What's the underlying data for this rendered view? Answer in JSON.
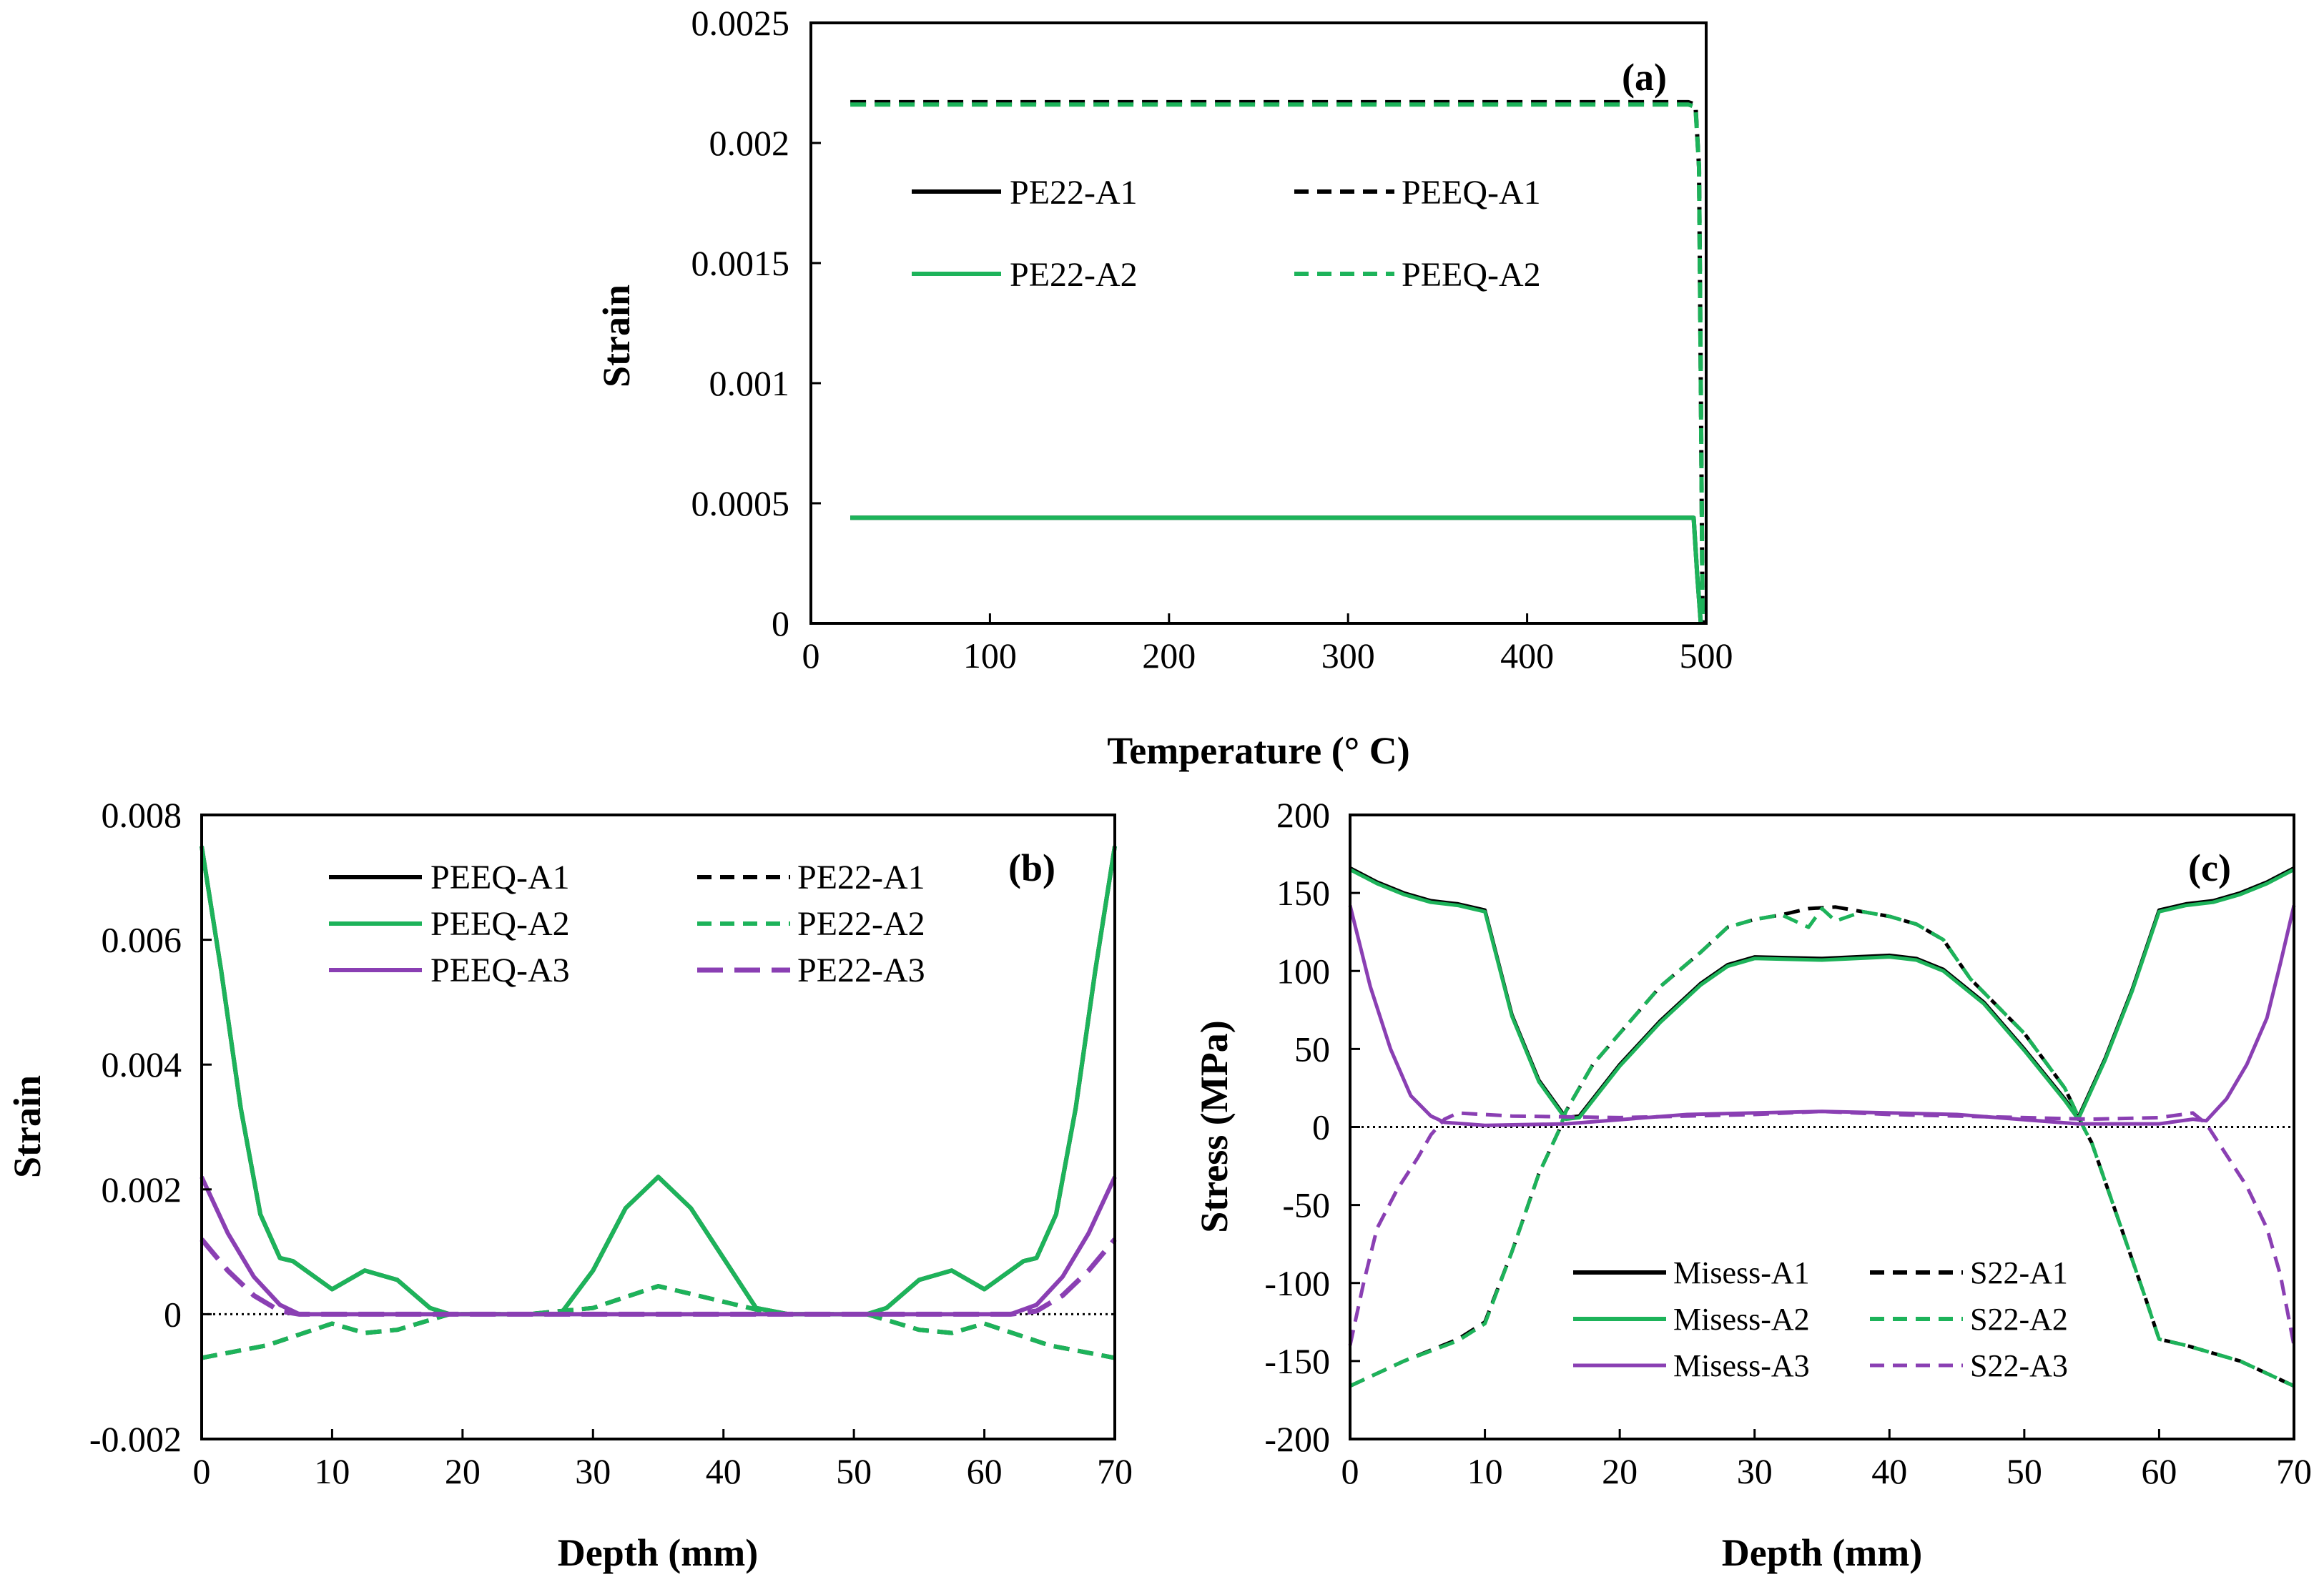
{
  "colors": {
    "A1": "#000000",
    "A2": "#1db35a",
    "A3": "#8a3fb3"
  },
  "chart_data": [
    {
      "id": "a",
      "type": "line",
      "panel_label": "(a)",
      "xlabel": "Temperature (° C)",
      "ylabel": "Strain",
      "xlim": [
        0,
        500
      ],
      "ylim": [
        0,
        0.0025
      ],
      "xticks": [
        "0",
        "100",
        "200",
        "300",
        "400",
        "500"
      ],
      "yticks": [
        "0",
        "0.0005",
        "0.001",
        "0.0015",
        "0.002",
        "0.0025"
      ],
      "legend_position": "upper-middle",
      "series": [
        {
          "name": "PE22-A1",
          "color_key": "A1",
          "dash": false,
          "x": [
            22,
            100,
            200,
            300,
            400,
            490,
            493,
            495,
            497
          ],
          "y": [
            0.00044,
            0.00044,
            0.00044,
            0.00044,
            0.00044,
            0.00044,
            0.00044,
            0.0002,
            0
          ]
        },
        {
          "name": "PEEQ-A1",
          "color_key": "A1",
          "dash": true,
          "x": [
            22,
            100,
            200,
            300,
            400,
            490,
            494,
            496,
            497,
            498
          ],
          "y": [
            0.00217,
            0.00217,
            0.00217,
            0.00217,
            0.00217,
            0.00217,
            0.00216,
            0.0019,
            0.001,
            0
          ]
        },
        {
          "name": "PE22-A2",
          "color_key": "A2",
          "dash": false,
          "x": [
            22,
            100,
            200,
            300,
            400,
            490,
            493,
            495,
            497
          ],
          "y": [
            0.00044,
            0.00044,
            0.00044,
            0.00044,
            0.00044,
            0.00044,
            0.00044,
            0.0002,
            0
          ]
        },
        {
          "name": "PEEQ-A2",
          "color_key": "A2",
          "dash": true,
          "x": [
            22,
            100,
            200,
            300,
            400,
            490,
            494,
            496,
            497,
            498
          ],
          "y": [
            0.00216,
            0.00216,
            0.00216,
            0.00216,
            0.00216,
            0.00216,
            0.00215,
            0.0019,
            0.001,
            0
          ]
        }
      ]
    },
    {
      "id": "b",
      "type": "line",
      "panel_label": "(b)",
      "xlabel": "Depth (mm)",
      "ylabel": "Strain",
      "xlim": [
        0,
        70
      ],
      "ylim": [
        -0.002,
        0.008
      ],
      "xticks": [
        "0",
        "10",
        "20",
        "30",
        "40",
        "50",
        "60",
        "70"
      ],
      "yticks": [
        "-0.002",
        "0",
        "0.002",
        "0.004",
        "0.006",
        "0.008"
      ],
      "zero_line": true,
      "legend_position": "top",
      "series": [
        {
          "name": "PEEQ-A1",
          "color_key": "A1",
          "dash": false,
          "x": [
            0,
            1.5,
            3,
            4.5,
            6,
            7,
            8,
            10,
            12.5,
            15,
            17.5,
            19,
            25,
            27.5,
            30,
            32.5,
            35,
            37.5,
            40,
            42.5,
            45,
            51,
            52.5,
            55,
            57.5,
            60,
            62,
            63,
            64,
            65.5,
            67,
            68.5,
            70
          ],
          "y": [
            0.0075,
            0.0055,
            0.0033,
            0.0016,
            0.0009,
            0.00085,
            0.0007,
            0.0004,
            0.0007,
            0.00055,
            0.0001,
            0,
            0,
            0,
            0.0007,
            0.0017,
            0.0022,
            0.0017,
            0.0009,
            0.0001,
            0,
            0,
            0.0001,
            0.00055,
            0.0007,
            0.0004,
            0.0007,
            0.00085,
            0.0009,
            0.0016,
            0.0033,
            0.0055,
            0.0075
          ]
        },
        {
          "name": "PE22-A1",
          "color_key": "A1",
          "dash": true,
          "x": [
            0,
            5,
            10,
            12.5,
            15,
            19,
            25,
            30,
            35,
            40,
            44,
            51,
            55,
            57.5,
            60,
            65,
            70
          ],
          "y": [
            -0.0007,
            -0.0005,
            -0.00015,
            -0.0003,
            -0.00025,
            0,
            0,
            0.0001,
            0.00045,
            0.0002,
            0,
            0,
            -0.00025,
            -0.0003,
            -0.00015,
            -0.0005,
            -0.0007
          ]
        },
        {
          "name": "PEEQ-A2",
          "color_key": "A2",
          "dash": false,
          "x": [
            0,
            1.5,
            3,
            4.5,
            6,
            7,
            8,
            10,
            12.5,
            15,
            17.5,
            19,
            25,
            27.5,
            30,
            32.5,
            35,
            37.5,
            40,
            42.5,
            45,
            51,
            52.5,
            55,
            57.5,
            60,
            62,
            63,
            64,
            65.5,
            67,
            68.5,
            70
          ],
          "y": [
            0.0075,
            0.0055,
            0.0033,
            0.0016,
            0.0009,
            0.00085,
            0.0007,
            0.0004,
            0.0007,
            0.00055,
            0.0001,
            0,
            0,
            0,
            0.0007,
            0.0017,
            0.0022,
            0.0017,
            0.0009,
            0.0001,
            0,
            0,
            0.0001,
            0.00055,
            0.0007,
            0.0004,
            0.0007,
            0.00085,
            0.0009,
            0.0016,
            0.0033,
            0.0055,
            0.0075
          ]
        },
        {
          "name": "PE22-A2",
          "color_key": "A2",
          "dash": true,
          "x": [
            0,
            5,
            10,
            12.5,
            15,
            19,
            25,
            30,
            35,
            40,
            44,
            51,
            55,
            57.5,
            60,
            65,
            70
          ],
          "y": [
            -0.0007,
            -0.0005,
            -0.00015,
            -0.0003,
            -0.00025,
            0,
            0,
            0.0001,
            0.00045,
            0.0002,
            0,
            0,
            -0.00025,
            -0.0003,
            -0.00015,
            -0.0005,
            -0.0007
          ]
        },
        {
          "name": "PEEQ-A3",
          "color_key": "A3",
          "dash": false,
          "x": [
            0,
            2,
            4,
            6,
            7.5,
            20,
            40,
            62,
            64,
            66,
            68,
            70
          ],
          "y": [
            0.0022,
            0.0013,
            0.0006,
            0.00015,
            0,
            0,
            0,
            0,
            0.00015,
            0.0006,
            0.0013,
            0.0022
          ]
        },
        {
          "name": "PE22-A3",
          "color_key": "A3",
          "dash": true,
          "x": [
            0,
            2,
            4,
            6,
            7.5,
            20,
            40,
            62,
            64,
            66,
            68,
            70
          ],
          "y": [
            0.0012,
            0.0007,
            0.0003,
            5e-05,
            0,
            0,
            0,
            0,
            5e-05,
            0.0003,
            0.0007,
            0.0012
          ]
        }
      ]
    },
    {
      "id": "c",
      "type": "line",
      "panel_label": "(c)",
      "xlabel": "Depth (mm)",
      "ylabel": "Stress (MPa)",
      "xlim": [
        0,
        70
      ],
      "ylim": [
        -200,
        200
      ],
      "xticks": [
        "0",
        "10",
        "20",
        "30",
        "40",
        "50",
        "60",
        "70"
      ],
      "yticks": [
        "-200",
        "-150",
        "-100",
        "-50",
        "0",
        "50",
        "100",
        "150",
        "200"
      ],
      "zero_line": true,
      "legend_position": "bottom-center",
      "series": [
        {
          "name": "Misess-A1",
          "color_key": "A1",
          "dash": false,
          "x": [
            0,
            2,
            4,
            6,
            8,
            10,
            12,
            14,
            16,
            17,
            20,
            23,
            26,
            28,
            30,
            35,
            40,
            42,
            44,
            47,
            50,
            53,
            54,
            56,
            58,
            60,
            62,
            64,
            66,
            68,
            70
          ],
          "y": [
            166,
            157,
            150,
            145,
            143,
            139,
            72,
            30,
            6,
            7,
            40,
            68,
            92,
            104,
            109,
            108,
            110,
            108,
            101,
            80,
            50,
            18,
            6,
            44,
            88,
            139,
            143,
            145,
            150,
            157,
            166
          ]
        },
        {
          "name": "S22-A1",
          "color_key": "A1",
          "dash": true,
          "x": [
            0,
            4,
            8,
            10,
            12,
            14,
            15.5,
            16,
            18,
            20,
            23,
            26,
            28,
            30,
            32,
            34,
            36,
            38,
            40,
            42,
            44,
            46,
            50,
            53,
            54.5,
            55,
            57,
            59,
            60,
            62,
            66,
            70
          ],
          "y": [
            -166,
            -150,
            -136,
            -125,
            -80,
            -30,
            -2,
            10,
            40,
            60,
            90,
            112,
            128,
            133,
            136,
            140,
            141,
            138,
            135,
            130,
            120,
            95,
            60,
            25,
            -2,
            -10,
            -60,
            -110,
            -136,
            -140,
            -150,
            -166
          ]
        },
        {
          "name": "Misess-A2",
          "color_key": "A2",
          "dash": false,
          "x": [
            0,
            2,
            4,
            6,
            8,
            10,
            12,
            14,
            16,
            17,
            20,
            23,
            26,
            28,
            30,
            35,
            40,
            42,
            44,
            47,
            50,
            53,
            54,
            56,
            58,
            60,
            62,
            64,
            66,
            68,
            70
          ],
          "y": [
            165,
            156,
            149,
            144,
            142,
            138,
            71,
            29,
            5,
            6,
            39,
            67,
            91,
            103,
            108,
            107,
            109,
            107,
            100,
            79,
            49,
            17,
            5,
            43,
            87,
            138,
            142,
            144,
            149,
            156,
            165
          ]
        },
        {
          "name": "S22-A2",
          "color_key": "A2",
          "dash": true,
          "x": [
            0,
            4,
            8,
            10,
            12,
            14,
            15.5,
            16,
            18,
            20,
            23,
            26,
            28,
            30,
            32,
            34,
            35,
            36,
            38,
            40,
            42,
            44,
            46,
            50,
            53,
            54.5,
            55,
            57,
            59,
            60,
            62,
            66,
            70
          ],
          "y": [
            -166,
            -150,
            -137,
            -126,
            -80,
            -30,
            -2,
            10,
            40,
            60,
            90,
            112,
            128,
            133,
            136,
            128,
            140,
            132,
            138,
            135,
            130,
            120,
            95,
            60,
            25,
            -2,
            -10,
            -60,
            -110,
            -136,
            -140,
            -150,
            -166
          ]
        },
        {
          "name": "Misess-A3",
          "color_key": "A3",
          "dash": false,
          "x": [
            0,
            1.5,
            3,
            4.5,
            6,
            7,
            10,
            16,
            25,
            35,
            45,
            54,
            60,
            62.5,
            63.5,
            65,
            66.5,
            68,
            69,
            70
          ],
          "y": [
            142,
            90,
            50,
            20,
            7,
            3,
            1,
            2,
            8,
            10,
            8,
            2,
            2,
            5,
            4,
            18,
            40,
            70,
            105,
            142
          ]
        },
        {
          "name": "S22-A3",
          "color_key": "A3",
          "dash": true,
          "x": [
            0,
            1,
            2,
            3.5,
            5,
            6,
            7,
            8,
            12,
            20,
            30,
            35,
            40,
            50,
            55,
            60,
            62.5,
            63.5,
            65,
            66.5,
            68,
            69,
            70
          ],
          "y": [
            -140,
            -100,
            -65,
            -40,
            -20,
            -5,
            5,
            9,
            7,
            6,
            8,
            10,
            8,
            6,
            5,
            6,
            9,
            2,
            -18,
            -38,
            -65,
            -95,
            -140
          ]
        }
      ]
    }
  ]
}
